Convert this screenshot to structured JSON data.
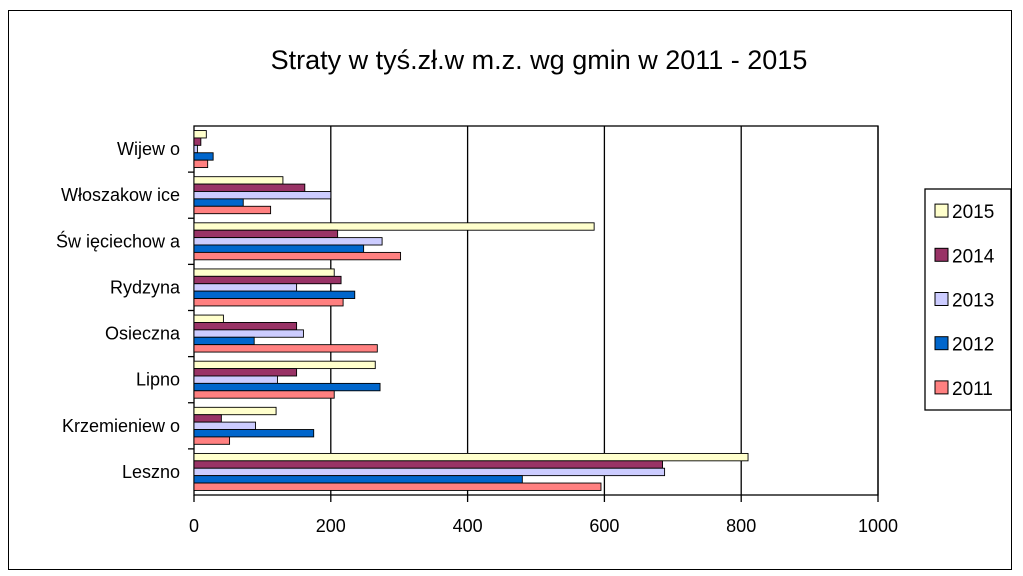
{
  "chart_data": {
    "type": "bar",
    "orientation": "horizontal",
    "title": "Straty w tyś.zł.w m.z. wg gmin w 2011 - 2015",
    "categories": [
      "Wijew o",
      "Włoszakow ice",
      "Św ięciechow a",
      "Rydzyna",
      "Osieczna",
      "Lipno",
      "Krzemieniew o",
      "Leszno"
    ],
    "series": [
      {
        "name": "2015",
        "color": "#ffffcc",
        "values": [
          18,
          130,
          585,
          205,
          43,
          265,
          120,
          810
        ]
      },
      {
        "name": "2014",
        "color": "#993366",
        "values": [
          10,
          162,
          210,
          215,
          150,
          150,
          40,
          685
        ]
      },
      {
        "name": "2013",
        "color": "#ccccff",
        "values": [
          5,
          200,
          275,
          150,
          160,
          122,
          90,
          688
        ]
      },
      {
        "name": "2012",
        "color": "#0066cc",
        "values": [
          28,
          72,
          248,
          235,
          88,
          272,
          175,
          480
        ]
      },
      {
        "name": "2011",
        "color": "#ff8080",
        "values": [
          20,
          112,
          302,
          218,
          268,
          205,
          52,
          595
        ]
      }
    ],
    "xlim": [
      0,
      1000
    ],
    "xticks": [
      "0",
      "200",
      "400",
      "600",
      "800",
      "1000"
    ],
    "grid": true,
    "legend": {
      "position": "right",
      "order": [
        "2015",
        "2014",
        "2013",
        "2012",
        "2011"
      ]
    }
  }
}
